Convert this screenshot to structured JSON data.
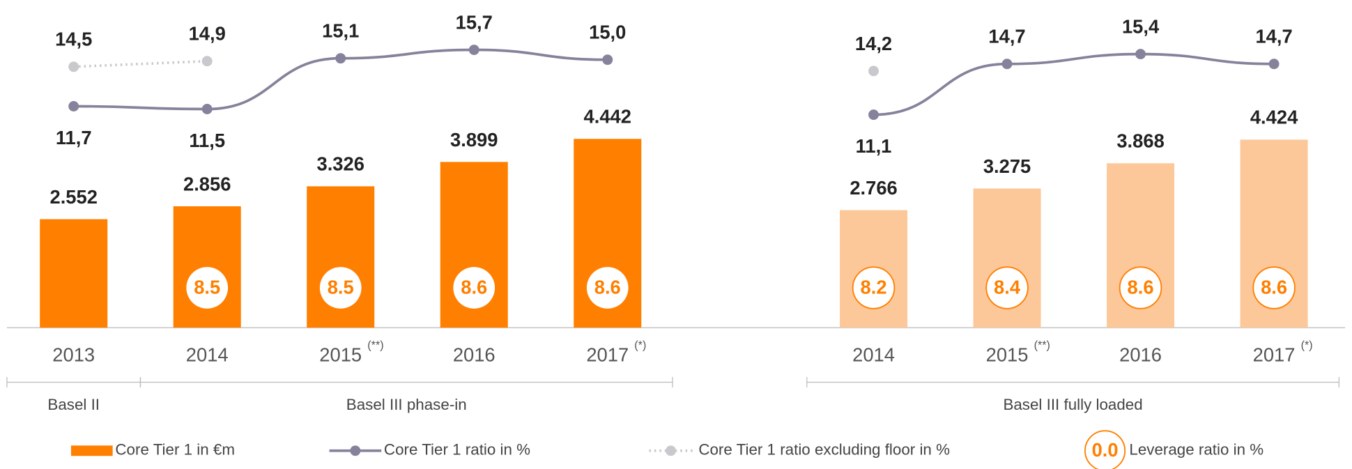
{
  "chart_data": [
    {
      "type": "bar",
      "categories": [
        "2013",
        "2014",
        "2015",
        "2016",
        "2017"
      ],
      "category_notes": [
        null,
        null,
        "(**)",
        null,
        "(*)"
      ],
      "groups": [
        {
          "label": "Basel II",
          "size": 1
        },
        {
          "label": "Basel III phase-in",
          "size": 4
        }
      ],
      "ylim": [
        0,
        7300
      ],
      "y2lim": [
        -4,
        18
      ],
      "series": [
        {
          "name": "Core Tier 1 in €m",
          "type": "bar",
          "color": "#ff7f00",
          "values": [
            2552,
            2856,
            3326,
            3899,
            4442
          ],
          "value_labels": [
            "2.552",
            "2.856",
            "3.326",
            "3.899",
            "4.442"
          ]
        },
        {
          "name": "Core Tier 1 ratio in %",
          "type": "line",
          "axis": "y2",
          "color": "#86829b",
          "values": [
            11.7,
            11.5,
            15.1,
            15.7,
            15.0
          ],
          "value_labels": [
            "11,7",
            "11,5",
            "15,1",
            "15,7",
            "15,0"
          ]
        },
        {
          "name": "Core Tier 1 ratio excluding floor in %",
          "type": "line",
          "dotted": true,
          "axis": "y2",
          "color": "#c9c9cd",
          "values": [
            14.5,
            14.9,
            null,
            null,
            null
          ],
          "value_labels": [
            "14,5",
            "14,9",
            null,
            null,
            null
          ]
        },
        {
          "name": "Leverage ratio in %",
          "type": "badge",
          "color": "#ff7f00",
          "badge_fill": "#ffffff",
          "values": [
            null,
            8.5,
            8.5,
            8.6,
            8.6
          ]
        }
      ]
    },
    {
      "type": "bar",
      "categories": [
        "2014",
        "2015",
        "2016",
        "2017"
      ],
      "category_notes": [
        null,
        "(**)",
        null,
        "(*)"
      ],
      "groups": [
        {
          "label": "Basel III fully loaded",
          "size": 4
        }
      ],
      "ylim": [
        0,
        7300
      ],
      "y2lim": [
        -4,
        18
      ],
      "series": [
        {
          "type": "bar",
          "color": "#fdc899",
          "values": [
            2766,
            3275,
            3868,
            4424
          ],
          "value_labels": [
            "2.766",
            "3.275",
            "3.868",
            "4.424"
          ]
        },
        {
          "type": "line",
          "axis": "y2",
          "color": "#86829b",
          "values": [
            11.1,
            14.7,
            15.4,
            14.7
          ],
          "value_labels": [
            "11,1",
            "14,7",
            "15,4",
            "14,7"
          ]
        },
        {
          "type": "line",
          "dotted": true,
          "axis": "y2",
          "color": "#c9c9cd",
          "values": [
            14.2,
            null,
            null,
            null
          ],
          "value_labels": [
            "14,2",
            null,
            null,
            null
          ]
        },
        {
          "type": "badge",
          "color": "#ff7f00",
          "badge_fill": "#ffffff",
          "badge_stroke": true,
          "values": [
            8.2,
            8.4,
            8.6,
            8.6
          ]
        }
      ]
    }
  ]
}
